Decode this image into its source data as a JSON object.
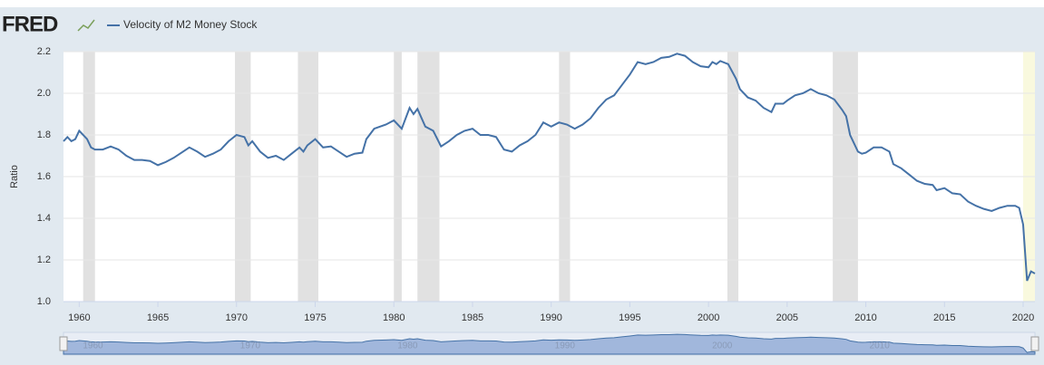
{
  "chart_data": {
    "type": "line",
    "logo": "FRED",
    "ylabel": "Ratio",
    "series": [
      {
        "name": "Velocity of M2 Money Stock",
        "color": "#4572a7",
        "x": [
          1959.0,
          1959.25,
          1959.5,
          1959.75,
          1960.0,
          1960.5,
          1960.75,
          1961.0,
          1961.5,
          1962.0,
          1962.5,
          1963.0,
          1963.5,
          1964.0,
          1964.5,
          1965.0,
          1965.5,
          1966.0,
          1966.5,
          1967.0,
          1967.5,
          1968.0,
          1968.5,
          1969.0,
          1969.5,
          1970.0,
          1970.5,
          1970.75,
          1971.0,
          1971.5,
          1972.0,
          1972.5,
          1973.0,
          1973.5,
          1974.0,
          1974.25,
          1974.5,
          1975.0,
          1975.5,
          1976.0,
          1976.5,
          1977.0,
          1977.5,
          1978.0,
          1978.25,
          1978.75,
          1979.5,
          1980.0,
          1980.5,
          1981.0,
          1981.25,
          1981.5,
          1982.0,
          1982.5,
          1983.0,
          1983.5,
          1984.0,
          1984.5,
          1985.0,
          1985.5,
          1986.0,
          1986.5,
          1987.0,
          1987.5,
          1988.0,
          1988.5,
          1989.0,
          1989.5,
          1990.0,
          1990.5,
          1991.0,
          1991.5,
          1992.0,
          1992.5,
          1993.0,
          1993.5,
          1994.0,
          1994.5,
          1995.0,
          1995.5,
          1996.0,
          1996.5,
          1997.0,
          1997.5,
          1998.0,
          1998.5,
          1999.0,
          1999.5,
          2000.0,
          2000.25,
          2000.5,
          2000.75,
          2001.25,
          2001.75,
          2002.0,
          2002.5,
          2003.0,
          2003.5,
          2004.0,
          2004.25,
          2004.75,
          2005.0,
          2005.5,
          2006.0,
          2006.5,
          2007.0,
          2007.5,
          2008.0,
          2008.5,
          2008.75,
          2009.0,
          2009.5,
          2009.75,
          2010.0,
          2010.5,
          2011.0,
          2011.5,
          2011.75,
          2012.25,
          2012.75,
          2013.25,
          2013.75,
          2014.25,
          2014.5,
          2015.0,
          2015.5,
          2016.0,
          2016.5,
          2017.0,
          2017.5,
          2018.0,
          2018.5,
          2019.0,
          2019.5,
          2019.75,
          2020.0,
          2020.25,
          2020.5,
          2020.75
        ],
        "values": [
          1.77,
          1.79,
          1.77,
          1.78,
          1.82,
          1.78,
          1.74,
          1.73,
          1.73,
          1.745,
          1.73,
          1.7,
          1.68,
          1.68,
          1.675,
          1.655,
          1.67,
          1.69,
          1.715,
          1.74,
          1.72,
          1.695,
          1.71,
          1.73,
          1.77,
          1.8,
          1.79,
          1.75,
          1.77,
          1.72,
          1.69,
          1.7,
          1.68,
          1.71,
          1.74,
          1.72,
          1.75,
          1.78,
          1.74,
          1.745,
          1.72,
          1.695,
          1.71,
          1.715,
          1.78,
          1.83,
          1.85,
          1.87,
          1.83,
          1.93,
          1.9,
          1.925,
          1.84,
          1.82,
          1.745,
          1.77,
          1.8,
          1.82,
          1.83,
          1.8,
          1.8,
          1.79,
          1.73,
          1.72,
          1.75,
          1.77,
          1.8,
          1.86,
          1.84,
          1.86,
          1.85,
          1.83,
          1.85,
          1.88,
          1.93,
          1.97,
          1.99,
          2.04,
          2.09,
          2.15,
          2.14,
          2.15,
          2.17,
          2.175,
          2.19,
          2.18,
          2.15,
          2.13,
          2.125,
          2.15,
          2.14,
          2.155,
          2.14,
          2.07,
          2.02,
          1.98,
          1.965,
          1.93,
          1.91,
          1.95,
          1.95,
          1.965,
          1.99,
          2.0,
          2.02,
          2.0,
          1.99,
          1.97,
          1.92,
          1.89,
          1.8,
          1.72,
          1.71,
          1.715,
          1.74,
          1.74,
          1.72,
          1.66,
          1.64,
          1.61,
          1.58,
          1.565,
          1.56,
          1.535,
          1.545,
          1.52,
          1.515,
          1.48,
          1.46,
          1.445,
          1.435,
          1.45,
          1.46,
          1.46,
          1.45,
          1.37,
          1.1,
          1.145,
          1.135
        ]
      }
    ],
    "xlim": [
      1959,
      2020.75
    ],
    "ylim": [
      1.0,
      2.2
    ],
    "xticks": [
      1960,
      1965,
      1970,
      1975,
      1980,
      1985,
      1990,
      1995,
      2000,
      2005,
      2010,
      2015,
      2020
    ],
    "yticks": [
      {
        "value": 1.0,
        "label": "1.0"
      },
      1.2,
      1.4,
      1.6,
      1.8,
      {
        "value": 2.0,
        "label": "2.0"
      },
      2.2
    ],
    "grid": true,
    "recessions": [
      [
        1960.25,
        1961.0
      ],
      [
        1969.9,
        1970.9
      ],
      [
        1973.9,
        1975.2
      ],
      [
        1980.0,
        1980.5
      ],
      [
        1981.5,
        1982.9
      ],
      [
        1990.5,
        1991.2
      ],
      [
        2001.2,
        2001.9
      ],
      [
        2007.9,
        2009.5
      ]
    ],
    "recession_color": "#e1e1e1",
    "recent_recession": [
      2020.0,
      2020.75
    ],
    "recent_recession_color": "#f9f9de",
    "navigator_ticks": [
      1960,
      1970,
      1980,
      1990,
      2000,
      2010
    ]
  }
}
